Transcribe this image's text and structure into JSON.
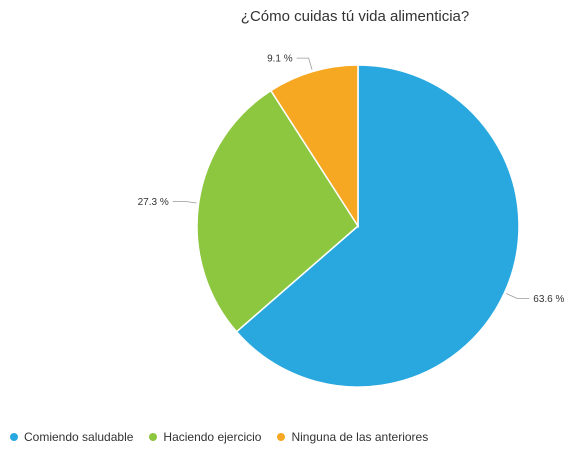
{
  "chart_data": {
    "type": "pie",
    "title": "¿Cómo cuidas tú vida alimenticia?",
    "slices": [
      {
        "name": "Comiendo saludable",
        "value": 63.6,
        "label": "63.6 %",
        "color": "#29a8e0"
      },
      {
        "name": "Haciendo ejercicio",
        "value": 27.3,
        "label": "27.3 %",
        "color": "#8dc63f"
      },
      {
        "name": "Ninguna de las anteriores",
        "value": 9.1,
        "label": "9.1 %",
        "color": "#f7a823"
      }
    ],
    "legend_position": "bottom-left"
  }
}
